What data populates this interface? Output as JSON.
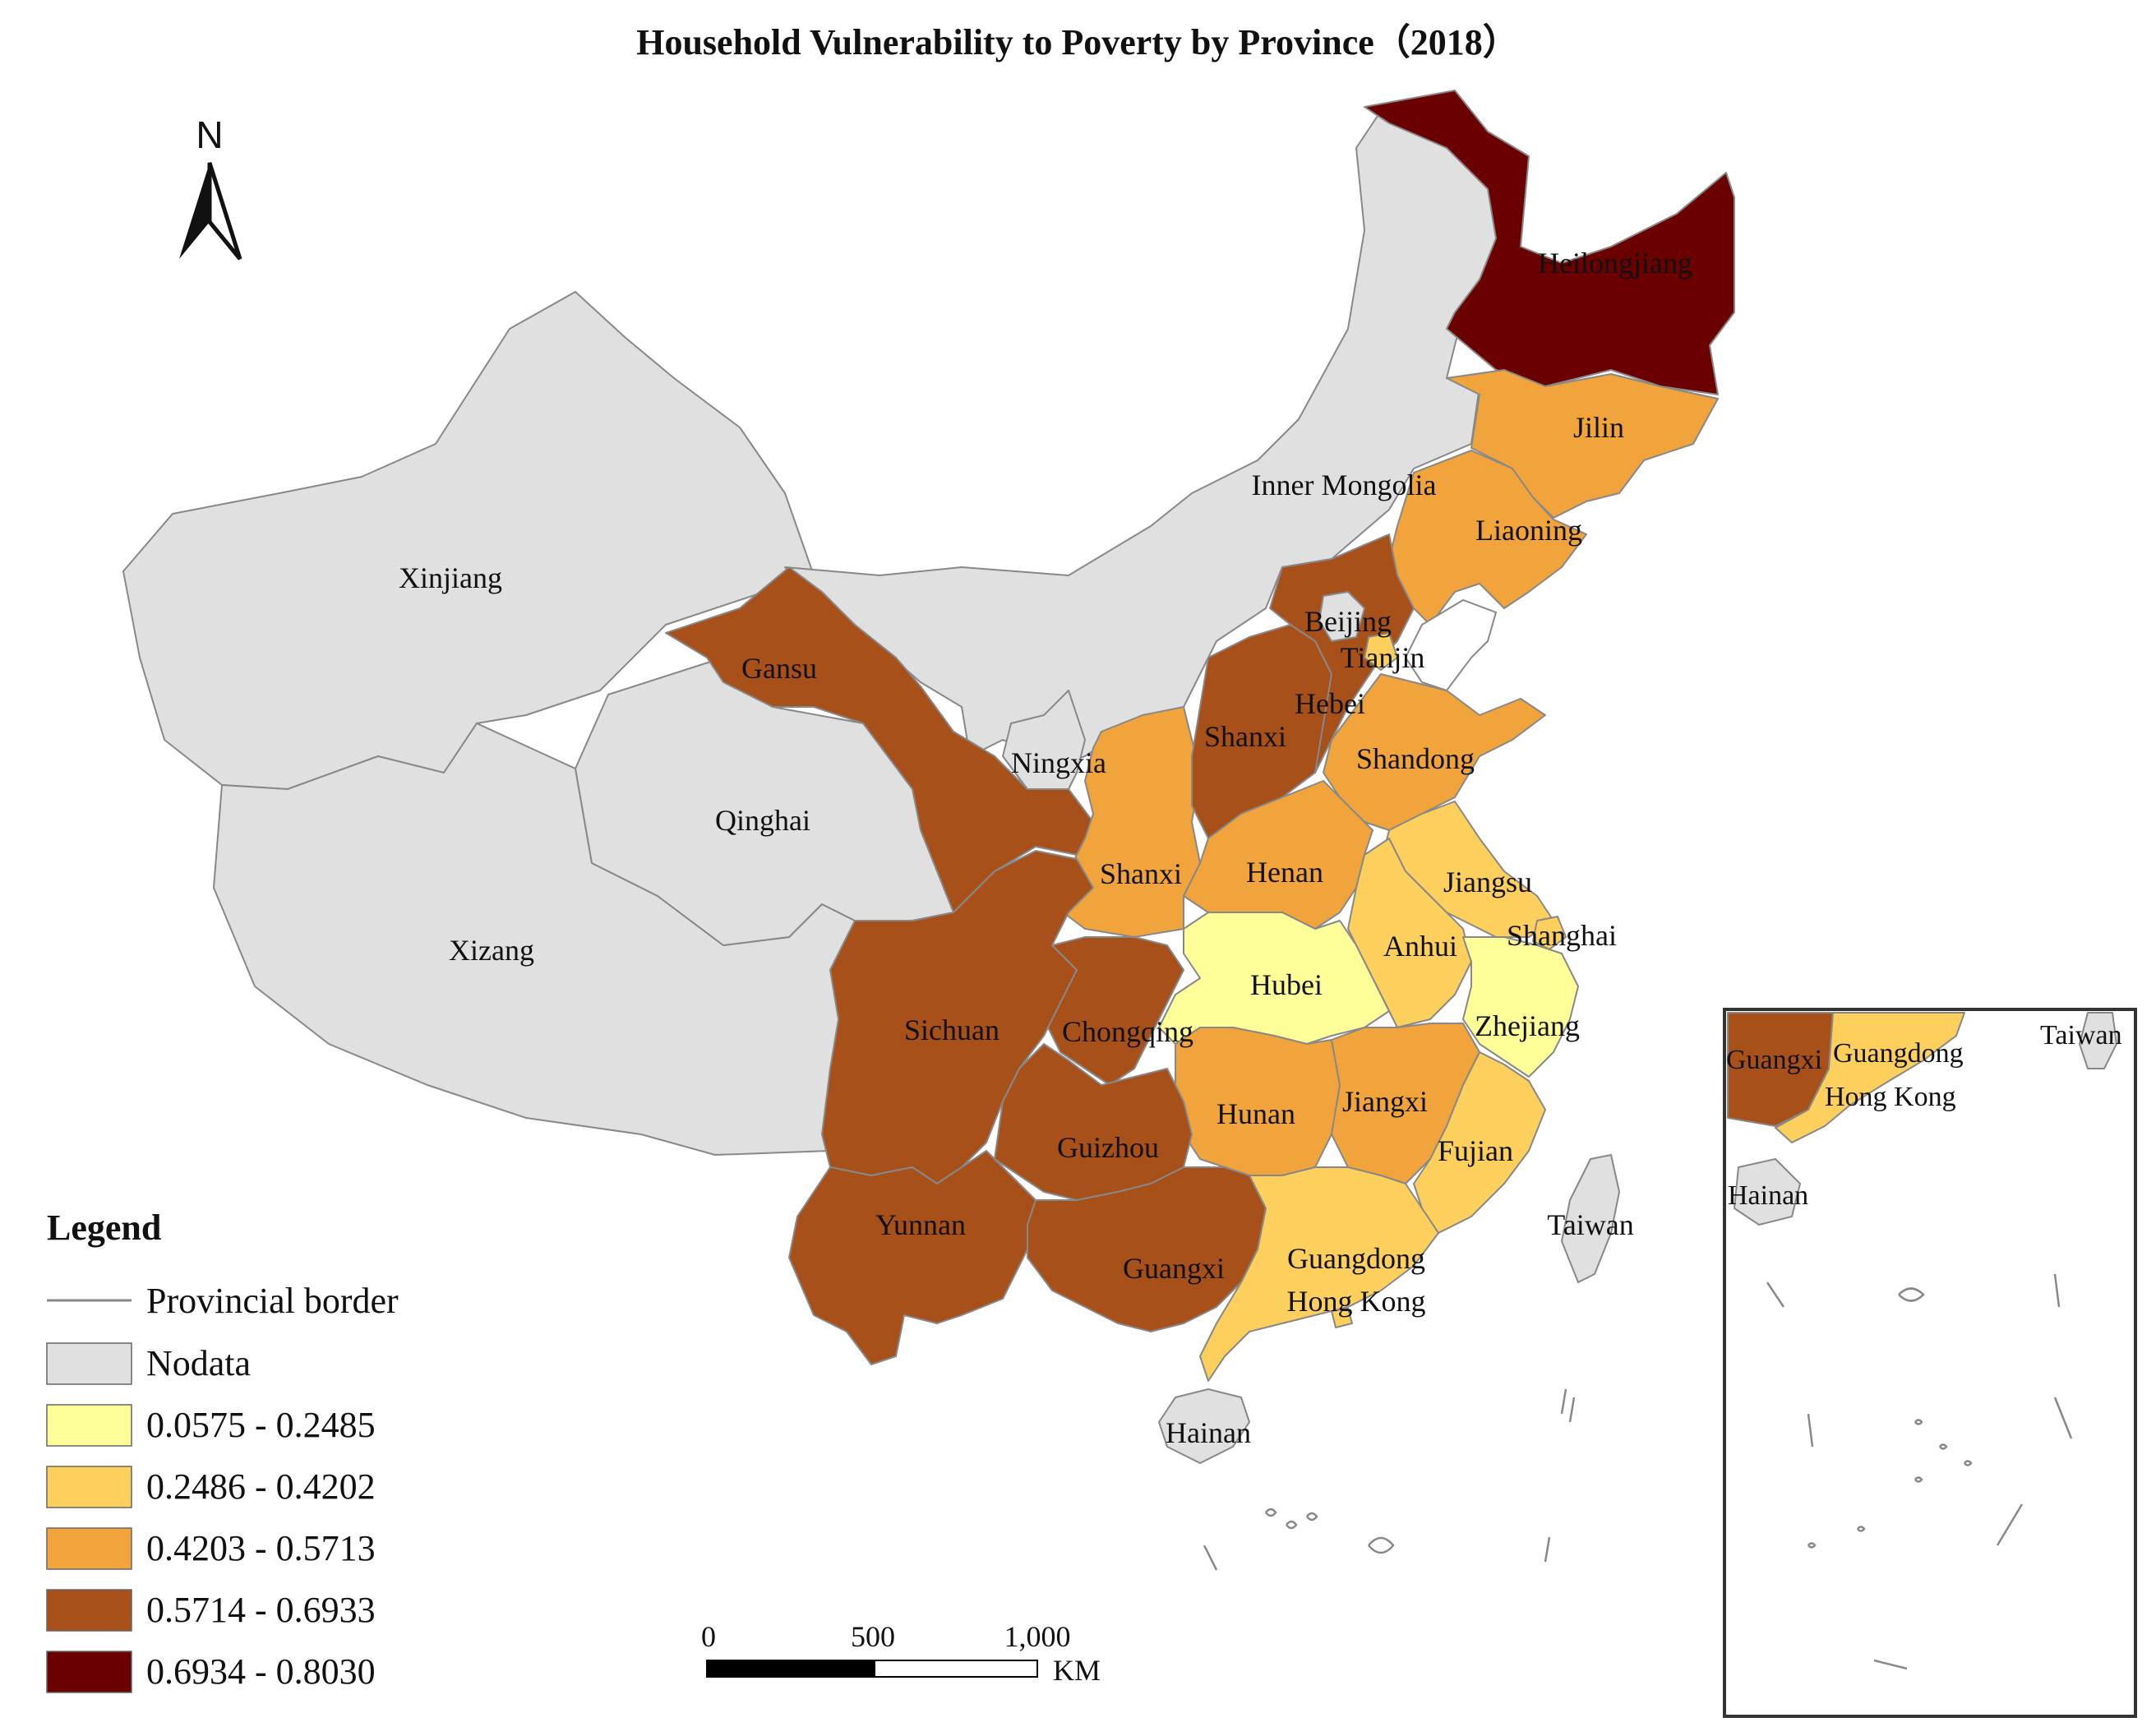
{
  "title": "Household Vulnerability to Poverty by Province（2018）",
  "colors": {
    "nodata": "#e0e0e0",
    "c1": "#ffff99",
    "c2": "#fdd05e",
    "c3": "#f1a43c",
    "c4": "#a8501a",
    "c5": "#6b0000",
    "border": "#888888"
  },
  "north_arrow": {
    "label": "N",
    "icon": "north-arrow-icon"
  },
  "legend": {
    "title": "Legend",
    "items": [
      {
        "label": "Provincial border",
        "kind": "line",
        "color": "#888888"
      },
      {
        "label": "Nodata",
        "kind": "box",
        "color": "#e0e0e0"
      },
      {
        "label": "0.0575 - 0.2485",
        "kind": "box",
        "color": "#ffff99"
      },
      {
        "label": "0.2486 - 0.4202",
        "kind": "box",
        "color": "#fdd05e"
      },
      {
        "label": "0.4203 - 0.5713",
        "kind": "box",
        "color": "#f1a43c"
      },
      {
        "label": "0.5714 - 0.6933",
        "kind": "box",
        "color": "#a8501a"
      },
      {
        "label": "0.6934 - 0.8030",
        "kind": "box",
        "color": "#6b0000"
      }
    ]
  },
  "scale_bar": {
    "ticks": [
      "0",
      "500",
      "1,000"
    ],
    "unit": "KM"
  },
  "provinces": [
    {
      "name": "Heilongjiang",
      "class": "c5"
    },
    {
      "name": "Jilin",
      "class": "c3"
    },
    {
      "name": "Liaoning",
      "class": "c3"
    },
    {
      "name": "Inner Mongolia",
      "class": "nodata"
    },
    {
      "name": "Xinjiang",
      "class": "nodata"
    },
    {
      "name": "Gansu",
      "class": "c4"
    },
    {
      "name": "Qinghai",
      "class": "nodata"
    },
    {
      "name": "Xizang",
      "class": "nodata"
    },
    {
      "name": "Ningxia",
      "class": "nodata"
    },
    {
      "name": "Beijing",
      "class": "c4"
    },
    {
      "name": "Tianjin",
      "class": "c2"
    },
    {
      "name": "Hebei",
      "class": "c4"
    },
    {
      "name": "Shanxi",
      "class": "c4"
    },
    {
      "name": "Shandong",
      "class": "c3"
    },
    {
      "name": "Shanxi",
      "class": "c3"
    },
    {
      "name": "Henan",
      "class": "c3"
    },
    {
      "name": "Jiangsu",
      "class": "c2"
    },
    {
      "name": "Shanghai",
      "class": "c2"
    },
    {
      "name": "Anhui",
      "class": "c2"
    },
    {
      "name": "Hubei",
      "class": "c1"
    },
    {
      "name": "Zhejiang",
      "class": "c1"
    },
    {
      "name": "Sichuan",
      "class": "c4"
    },
    {
      "name": "Chongqing",
      "class": "c4"
    },
    {
      "name": "Hunan",
      "class": "c3"
    },
    {
      "name": "Jiangxi",
      "class": "c3"
    },
    {
      "name": "Fujian",
      "class": "c2"
    },
    {
      "name": "Guizhou",
      "class": "c4"
    },
    {
      "name": "Yunnan",
      "class": "c4"
    },
    {
      "name": "Guangxi",
      "class": "c4"
    },
    {
      "name": "Guangdong",
      "class": "c2"
    },
    {
      "name": "Hong Kong",
      "class": "c2"
    },
    {
      "name": "Taiwan",
      "class": "nodata"
    },
    {
      "name": "Hainan",
      "class": "nodata"
    }
  ],
  "inset_labels": [
    "Taiwan",
    "Guangxi",
    "Guangdong",
    "Hong Kong",
    "Hainan"
  ]
}
